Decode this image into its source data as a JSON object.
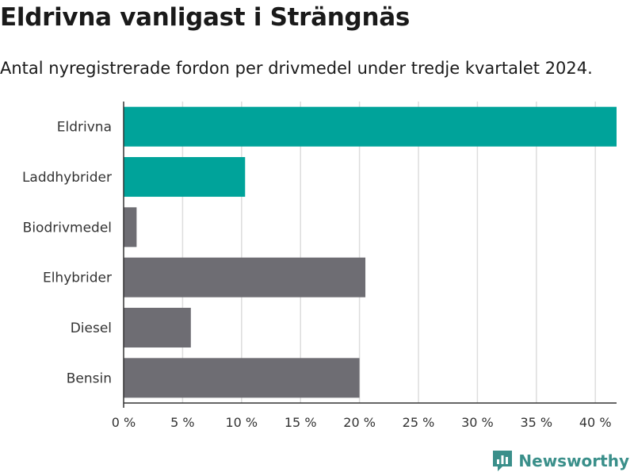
{
  "title": "Eldrivna vanligast i Strängnäs",
  "subtitle": "Antal nyregistrerade fordon per drivmedel under tredje kvartalet 2024.",
  "brand": {
    "name": "Newsworthy",
    "icon": "newsworthy-logo-icon",
    "color": "#3a8f8a"
  },
  "colors": {
    "highlight": "#00a39a",
    "default": "#6e6d73",
    "grid": "#dddddd"
  },
  "chart_data": {
    "type": "bar",
    "orientation": "horizontal",
    "categories": [
      "Eldrivna",
      "Laddhybrider",
      "Biodrivmedel",
      "Elhybrider",
      "Diesel",
      "Bensin"
    ],
    "values": [
      41.8,
      10.3,
      1.1,
      20.5,
      5.7,
      20.0
    ],
    "highlighted": [
      "Eldrivna",
      "Laddhybrider"
    ],
    "xlim": [
      0,
      41.8
    ],
    "xticks": [
      0,
      5,
      10,
      15,
      20,
      25,
      30,
      35,
      40
    ],
    "xtick_labels": [
      "0 %",
      "5 %",
      "10 %",
      "15 %",
      "20 %",
      "25 %",
      "30 %",
      "35 %",
      "40 %"
    ],
    "grid": true,
    "xlabel": "",
    "ylabel": ""
  }
}
